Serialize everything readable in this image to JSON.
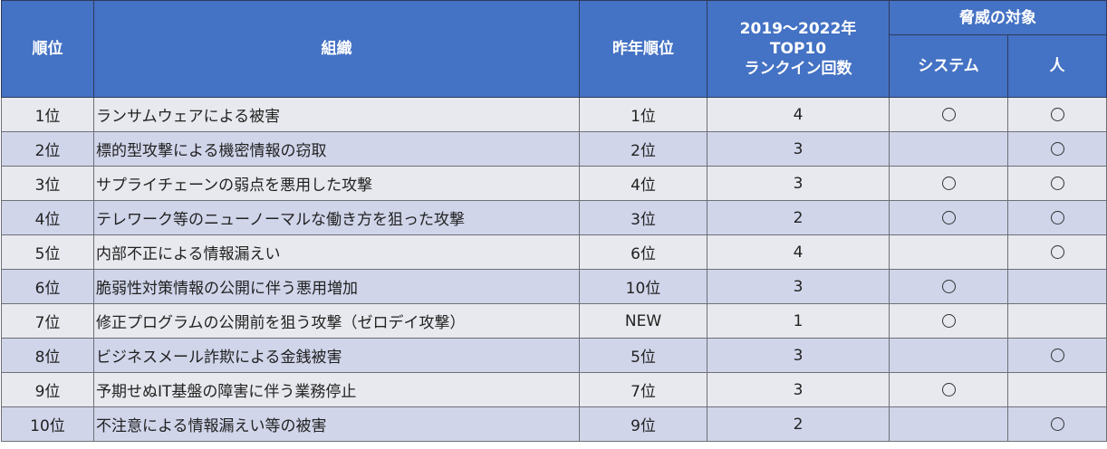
{
  "headers": {
    "rank": "順位",
    "org": "組織",
    "prev_rank": "昨年順位",
    "count_line1": "2019～2022年",
    "count_line2": "TOP10",
    "count_line3": "ランクイン回数",
    "target": "脅威の対象",
    "system": "システム",
    "person": "人"
  },
  "mark": "〇",
  "rows": [
    {
      "rank": "1位",
      "threat": "ランサムウェアによる被害",
      "prev": "1位",
      "count": "4",
      "system": true,
      "person": true
    },
    {
      "rank": "2位",
      "threat": "標的型攻撃による機密情報の窃取",
      "prev": "2位",
      "count": "3",
      "system": false,
      "person": true
    },
    {
      "rank": "3位",
      "threat": "サプライチェーンの弱点を悪用した攻撃",
      "prev": "4位",
      "count": "3",
      "system": true,
      "person": true
    },
    {
      "rank": "4位",
      "threat": "テレワーク等のニューノーマルな働き方を狙った攻撃",
      "prev": "3位",
      "count": "2",
      "system": true,
      "person": true
    },
    {
      "rank": "5位",
      "threat": "内部不正による情報漏えい",
      "prev": "6位",
      "count": "4",
      "system": false,
      "person": true
    },
    {
      "rank": "6位",
      "threat": "脆弱性対策情報の公開に伴う悪用増加",
      "prev": "10位",
      "count": "3",
      "system": true,
      "person": false
    },
    {
      "rank": "7位",
      "threat": "修正プログラムの公開前を狙う攻撃（ゼロデイ攻撃）",
      "prev": "NEW",
      "count": "1",
      "system": true,
      "person": false
    },
    {
      "rank": "8位",
      "threat": "ビジネスメール詐欺による金銭被害",
      "prev": "5位",
      "count": "3",
      "system": false,
      "person": true
    },
    {
      "rank": "9位",
      "threat": "予期せぬIT基盤の障害に伴う業務停止",
      "prev": "7位",
      "count": "3",
      "system": true,
      "person": false
    },
    {
      "rank": "10位",
      "threat": "不注意による情報漏えい等の被害",
      "prev": "9位",
      "count": "2",
      "system": false,
      "person": true
    }
  ]
}
